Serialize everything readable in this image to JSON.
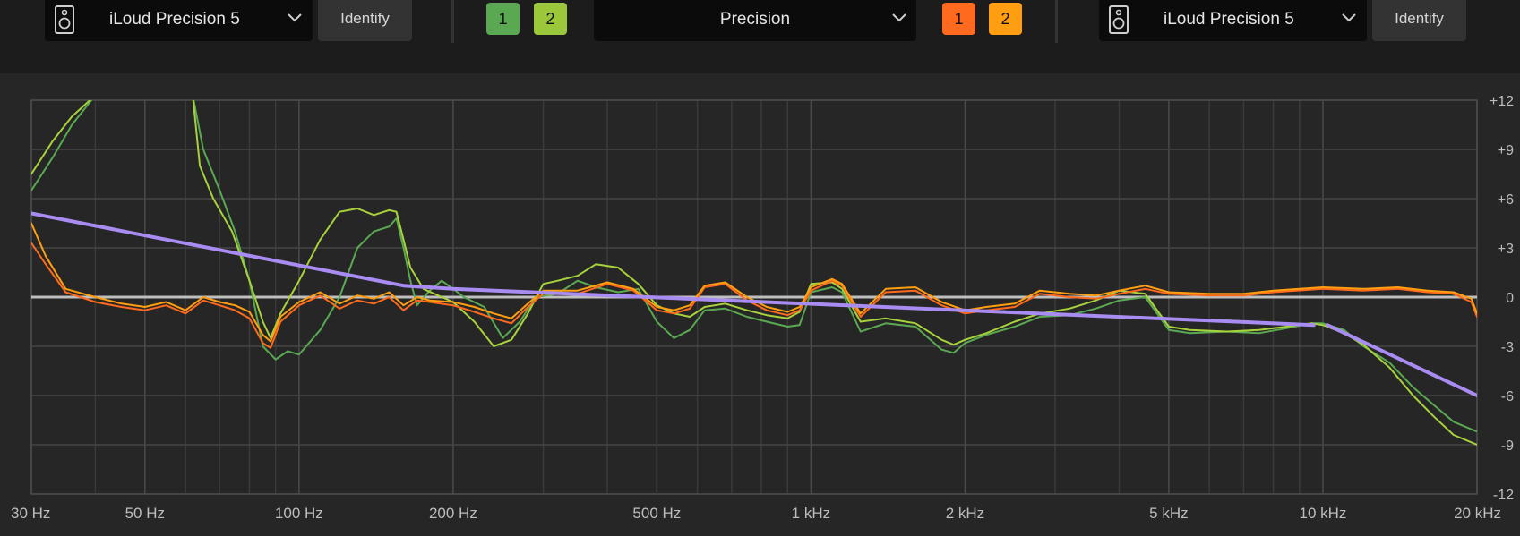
{
  "toolbar": {
    "left": {
      "speaker_icon": "speaker-icon",
      "model": "iLoud Precision 5",
      "identify": "Identify",
      "channels": [
        {
          "label": "1",
          "color": "#5aa952"
        },
        {
          "label": "2",
          "color": "#9ac83a"
        }
      ]
    },
    "mode": {
      "label": "Precision"
    },
    "right": {
      "speaker_icon": "speaker-icon",
      "model": "iLoud Precision 5",
      "identify": "Identify",
      "channels": [
        {
          "label": "1",
          "color": "#ff6a1e"
        },
        {
          "label": "2",
          "color": "#ff9e10"
        }
      ]
    }
  },
  "chart_data": {
    "type": "line",
    "x_scale": "log",
    "xlim": [
      30,
      20000
    ],
    "ylim": [
      -12,
      12
    ],
    "y_ticks": [
      {
        "value": 12,
        "label": "+12"
      },
      {
        "value": 9,
        "label": "+9"
      },
      {
        "value": 6,
        "label": "+6"
      },
      {
        "value": 3,
        "label": "+3"
      },
      {
        "value": 0,
        "label": "0"
      },
      {
        "value": -3,
        "label": "-3"
      },
      {
        "value": -6,
        "label": "-6"
      },
      {
        "value": -9,
        "label": "-9"
      },
      {
        "value": -12,
        "label": "-12"
      }
    ],
    "x_ticks": [
      {
        "value": 30,
        "label": "30 Hz"
      },
      {
        "value": 50,
        "label": "50 Hz"
      },
      {
        "value": 100,
        "label": "100 Hz"
      },
      {
        "value": 200,
        "label": "200 Hz"
      },
      {
        "value": 500,
        "label": "500 Hz"
      },
      {
        "value": 1000,
        "label": "1 kHz"
      },
      {
        "value": 2000,
        "label": "2 kHz"
      },
      {
        "value": 5000,
        "label": "5 kHz"
      },
      {
        "value": 10000,
        "label": "10 kHz"
      },
      {
        "value": 20000,
        "label": "20 kHz"
      }
    ],
    "minor_grid_x": [
      40,
      60,
      70,
      80,
      90,
      300,
      400,
      600,
      700,
      800,
      900,
      3000,
      4000,
      6000,
      7000,
      8000,
      9000
    ],
    "zero_line": true,
    "grid": true,
    "series": [
      {
        "color": "#5aa952",
        "points": [
          [
            30,
            6.5
          ],
          [
            33,
            8.5
          ],
          [
            36,
            10.5
          ],
          [
            40,
            12.3
          ],
          [
            62,
            12.3
          ],
          [
            65,
            9
          ],
          [
            70,
            6.5
          ],
          [
            75,
            4
          ],
          [
            80,
            1
          ],
          [
            85,
            -3
          ],
          [
            90,
            -3.8
          ],
          [
            95,
            -3.3
          ],
          [
            100,
            -3.5
          ],
          [
            110,
            -2
          ],
          [
            120,
            0
          ],
          [
            130,
            3
          ],
          [
            140,
            4
          ],
          [
            150,
            4.3
          ],
          [
            155,
            4.8
          ],
          [
            160,
            3
          ],
          [
            165,
            1
          ],
          [
            170,
            -0.5
          ],
          [
            180,
            0.4
          ],
          [
            190,
            1
          ],
          [
            200,
            0.5
          ],
          [
            210,
            0
          ],
          [
            230,
            -0.6
          ],
          [
            250,
            -2.5
          ],
          [
            270,
            -1.5
          ],
          [
            290,
            0
          ],
          [
            320,
            0.2
          ],
          [
            350,
            1
          ],
          [
            380,
            0.6
          ],
          [
            420,
            0.3
          ],
          [
            460,
            0.5
          ],
          [
            500,
            -1.5
          ],
          [
            540,
            -2.5
          ],
          [
            580,
            -2
          ],
          [
            620,
            -0.8
          ],
          [
            680,
            -0.7
          ],
          [
            750,
            -1.2
          ],
          [
            820,
            -1.5
          ],
          [
            900,
            -1.8
          ],
          [
            950,
            -1.7
          ],
          [
            1000,
            0.3
          ],
          [
            1100,
            0.6
          ],
          [
            1150,
            0.3
          ],
          [
            1250,
            -2.1
          ],
          [
            1400,
            -1.6
          ],
          [
            1600,
            -1.8
          ],
          [
            1800,
            -3.2
          ],
          [
            1900,
            -3.4
          ],
          [
            2000,
            -2.8
          ],
          [
            2200,
            -2.3
          ],
          [
            2500,
            -1.8
          ],
          [
            2800,
            -1.2
          ],
          [
            3200,
            -1.1
          ],
          [
            3600,
            -0.7
          ],
          [
            4000,
            -0.2
          ],
          [
            4500,
            0
          ],
          [
            5000,
            -2
          ],
          [
            5500,
            -2.2
          ],
          [
            6500,
            -2.1
          ],
          [
            7500,
            -2.2
          ],
          [
            8500,
            -1.9
          ],
          [
            9500,
            -1.6
          ],
          [
            10000,
            -1.6
          ],
          [
            11000,
            -2
          ],
          [
            12000,
            -3
          ],
          [
            13500,
            -4
          ],
          [
            15000,
            -5.5
          ],
          [
            16500,
            -6.6
          ],
          [
            18000,
            -7.6
          ],
          [
            20000,
            -8.2
          ]
        ]
      },
      {
        "color": "#a8d23c",
        "points": [
          [
            30,
            7.5
          ],
          [
            33,
            9.5
          ],
          [
            36,
            11
          ],
          [
            40,
            12.3
          ],
          [
            62,
            12.3
          ],
          [
            64,
            8
          ],
          [
            68,
            6
          ],
          [
            74,
            4
          ],
          [
            80,
            1
          ],
          [
            85,
            -1.5
          ],
          [
            88,
            -2.5
          ],
          [
            92,
            -1
          ],
          [
            100,
            1
          ],
          [
            110,
            3.5
          ],
          [
            120,
            5.2
          ],
          [
            130,
            5.4
          ],
          [
            140,
            5
          ],
          [
            150,
            5.3
          ],
          [
            155,
            5.2
          ],
          [
            160,
            3.5
          ],
          [
            165,
            1.8
          ],
          [
            175,
            0.5
          ],
          [
            190,
            0
          ],
          [
            200,
            -0.3
          ],
          [
            220,
            -1.5
          ],
          [
            240,
            -3
          ],
          [
            260,
            -2.6
          ],
          [
            280,
            -1
          ],
          [
            300,
            0.8
          ],
          [
            320,
            1
          ],
          [
            350,
            1.3
          ],
          [
            380,
            2
          ],
          [
            420,
            1.8
          ],
          [
            460,
            0.8
          ],
          [
            500,
            -0.5
          ],
          [
            540,
            -1
          ],
          [
            580,
            -1.2
          ],
          [
            620,
            -0.6
          ],
          [
            680,
            -0.4
          ],
          [
            750,
            -0.8
          ],
          [
            820,
            -1.1
          ],
          [
            900,
            -1.3
          ],
          [
            950,
            -0.9
          ],
          [
            1000,
            0.8
          ],
          [
            1100,
            0.9
          ],
          [
            1150,
            0.5
          ],
          [
            1250,
            -1.5
          ],
          [
            1400,
            -1.3
          ],
          [
            1600,
            -1.6
          ],
          [
            1800,
            -2.6
          ],
          [
            1900,
            -2.9
          ],
          [
            2000,
            -2.6
          ],
          [
            2200,
            -2.2
          ],
          [
            2500,
            -1.5
          ],
          [
            2800,
            -1
          ],
          [
            3200,
            -0.7
          ],
          [
            3600,
            -0.2
          ],
          [
            4000,
            0.4
          ],
          [
            4500,
            0.2
          ],
          [
            5000,
            -1.8
          ],
          [
            5500,
            -2
          ],
          [
            6500,
            -2.1
          ],
          [
            7500,
            -2
          ],
          [
            8500,
            -1.8
          ],
          [
            9500,
            -1.6
          ],
          [
            10000,
            -1.7
          ],
          [
            11000,
            -2.2
          ],
          [
            12000,
            -2.9
          ],
          [
            13500,
            -4.3
          ],
          [
            15000,
            -6
          ],
          [
            16500,
            -7.3
          ],
          [
            18000,
            -8.4
          ],
          [
            20000,
            -9
          ]
        ]
      },
      {
        "color": "#ff6a1e",
        "points": [
          [
            30,
            3.3
          ],
          [
            32,
            2
          ],
          [
            35,
            0.3
          ],
          [
            40,
            -0.3
          ],
          [
            45,
            -0.6
          ],
          [
            50,
            -0.8
          ],
          [
            55,
            -0.5
          ],
          [
            60,
            -1
          ],
          [
            65,
            -0.2
          ],
          [
            70,
            -0.5
          ],
          [
            75,
            -0.8
          ],
          [
            80,
            -1.3
          ],
          [
            85,
            -2.8
          ],
          [
            88,
            -3.1
          ],
          [
            92,
            -1.5
          ],
          [
            100,
            -0.5
          ],
          [
            110,
            0.1
          ],
          [
            120,
            -0.7
          ],
          [
            130,
            -0.2
          ],
          [
            140,
            -0.4
          ],
          [
            150,
            0
          ],
          [
            160,
            -0.8
          ],
          [
            170,
            -0.2
          ],
          [
            180,
            -0.3
          ],
          [
            200,
            -0.5
          ],
          [
            220,
            -0.9
          ],
          [
            240,
            -1.3
          ],
          [
            260,
            -1.6
          ],
          [
            280,
            -0.6
          ],
          [
            300,
            0.2
          ],
          [
            350,
            0.2
          ],
          [
            400,
            0.8
          ],
          [
            450,
            0.4
          ],
          [
            500,
            -0.8
          ],
          [
            540,
            -1
          ],
          [
            580,
            -0.7
          ],
          [
            620,
            0.6
          ],
          [
            680,
            0.8
          ],
          [
            750,
            -0.2
          ],
          [
            820,
            -0.8
          ],
          [
            900,
            -1.1
          ],
          [
            950,
            -0.8
          ],
          [
            1000,
            0.4
          ],
          [
            1100,
            1
          ],
          [
            1150,
            0.7
          ],
          [
            1250,
            -1.2
          ],
          [
            1400,
            0.3
          ],
          [
            1600,
            0.4
          ],
          [
            1800,
            -0.5
          ],
          [
            2000,
            -1
          ],
          [
            2200,
            -0.8
          ],
          [
            2500,
            -0.6
          ],
          [
            2800,
            0.2
          ],
          [
            3200,
            0
          ],
          [
            3600,
            -0.1
          ],
          [
            4000,
            0.2
          ],
          [
            4500,
            0.5
          ],
          [
            5000,
            0.2
          ],
          [
            6000,
            0.1
          ],
          [
            7000,
            0.1
          ],
          [
            8000,
            0.3
          ],
          [
            10000,
            0.5
          ],
          [
            12000,
            0.4
          ],
          [
            14000,
            0.5
          ],
          [
            16000,
            0.3
          ],
          [
            18000,
            0.2
          ],
          [
            19500,
            -0.3
          ],
          [
            20000,
            -1.2
          ]
        ]
      },
      {
        "color": "#ff9e10",
        "points": [
          [
            30,
            4.5
          ],
          [
            32,
            2.5
          ],
          [
            35,
            0.5
          ],
          [
            40,
            0
          ],
          [
            45,
            -0.4
          ],
          [
            50,
            -0.6
          ],
          [
            55,
            -0.3
          ],
          [
            60,
            -0.8
          ],
          [
            65,
            0
          ],
          [
            70,
            -0.3
          ],
          [
            75,
            -0.5
          ],
          [
            80,
            -0.9
          ],
          [
            85,
            -2.3
          ],
          [
            88,
            -2.7
          ],
          [
            92,
            -1.2
          ],
          [
            100,
            -0.3
          ],
          [
            110,
            0.3
          ],
          [
            120,
            -0.4
          ],
          [
            130,
            0.1
          ],
          [
            140,
            -0.1
          ],
          [
            150,
            0.3
          ],
          [
            160,
            -0.5
          ],
          [
            170,
            0
          ],
          [
            180,
            -0.2
          ],
          [
            200,
            -0.3
          ],
          [
            220,
            -0.6
          ],
          [
            240,
            -1
          ],
          [
            260,
            -1.3
          ],
          [
            280,
            -0.4
          ],
          [
            300,
            0.4
          ],
          [
            350,
            0.4
          ],
          [
            400,
            0.9
          ],
          [
            450,
            0.5
          ],
          [
            500,
            -0.6
          ],
          [
            540,
            -0.8
          ],
          [
            580,
            -0.5
          ],
          [
            620,
            0.7
          ],
          [
            680,
            0.9
          ],
          [
            750,
            0
          ],
          [
            820,
            -0.6
          ],
          [
            900,
            -0.9
          ],
          [
            950,
            -0.6
          ],
          [
            1000,
            0.6
          ],
          [
            1100,
            1.1
          ],
          [
            1150,
            0.8
          ],
          [
            1250,
            -1
          ],
          [
            1400,
            0.5
          ],
          [
            1600,
            0.6
          ],
          [
            1800,
            -0.3
          ],
          [
            2000,
            -0.8
          ],
          [
            2200,
            -0.6
          ],
          [
            2500,
            -0.4
          ],
          [
            2800,
            0.4
          ],
          [
            3200,
            0.2
          ],
          [
            3600,
            0.1
          ],
          [
            4000,
            0.4
          ],
          [
            4500,
            0.7
          ],
          [
            5000,
            0.3
          ],
          [
            6000,
            0.2
          ],
          [
            7000,
            0.2
          ],
          [
            8000,
            0.4
          ],
          [
            10000,
            0.6
          ],
          [
            12000,
            0.5
          ],
          [
            14000,
            0.6
          ],
          [
            16000,
            0.4
          ],
          [
            18000,
            0.3
          ],
          [
            19500,
            -0.1
          ],
          [
            20000,
            -1
          ]
        ]
      },
      {
        "color": "#a98cf2",
        "width": 4,
        "points": [
          [
            30,
            5.1
          ],
          [
            160,
            0.7
          ],
          [
            200,
            0.5
          ],
          [
            9600,
            -1.7
          ]
        ]
      },
      {
        "color": "#a98cf2",
        "width": 4,
        "points": [
          [
            10200,
            -1.7
          ],
          [
            20000,
            -6
          ]
        ]
      }
    ]
  }
}
